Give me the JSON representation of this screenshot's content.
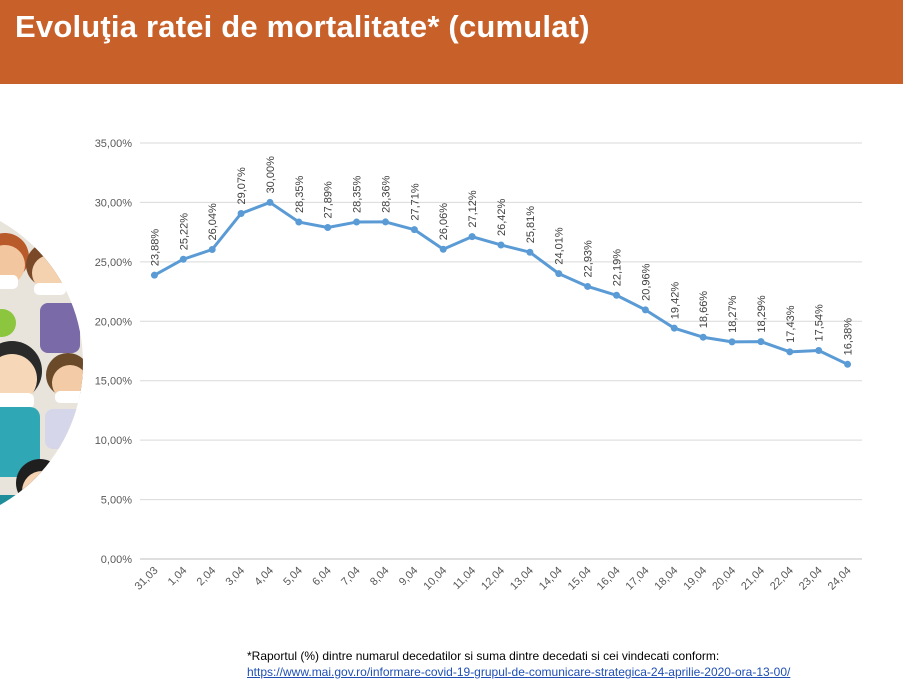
{
  "header": {
    "title": "Evoluţia ratei de mortalitate* (cumulat)"
  },
  "colors": {
    "header_bg": "#c8602a",
    "series": "#5b9bd5",
    "grid": "#d9d9d9"
  },
  "chart_data": {
    "type": "line",
    "title": "",
    "xlabel": "",
    "ylabel": "",
    "ylim": [
      0,
      35
    ],
    "y_ticks": [
      "0,00%",
      "5,00%",
      "10,00%",
      "15,00%",
      "20,00%",
      "25,00%",
      "30,00%",
      "35,00%"
    ],
    "grid": true,
    "legend": "none",
    "categories": [
      "31,03",
      "1,04",
      "2,04",
      "3,04",
      "4,04",
      "5,04",
      "6,04",
      "7,04",
      "8,04",
      "9,04",
      "10,04",
      "11,04",
      "12,04",
      "13,04",
      "14,04",
      "15,04",
      "16,04",
      "17,04",
      "18,04",
      "19,04",
      "20,04",
      "21,04",
      "22,04",
      "23,04",
      "24,04"
    ],
    "series": [
      {
        "values": [
          23.88,
          25.22,
          26.04,
          29.07,
          30.0,
          28.35,
          27.89,
          28.35,
          28.36,
          27.71,
          26.06,
          27.12,
          26.42,
          25.81,
          24.01,
          22.93,
          22.19,
          20.96,
          19.42,
          18.66,
          18.27,
          18.29,
          17.43,
          17.54,
          16.38
        ],
        "labels": [
          "23,88%",
          "25,22%",
          "26,04%",
          "29,07%",
          "30,00%",
          "28,35%",
          "27,89%",
          "28,35%",
          "28,36%",
          "27,71%",
          "26,06%",
          "27,12%",
          "26,42%",
          "25,81%",
          "24,01%",
          "22,93%",
          "22,19%",
          "20,96%",
          "19,42%",
          "18,66%",
          "18,27%",
          "18,29%",
          "17,43%",
          "17,54%",
          "16,38%"
        ]
      }
    ]
  },
  "footnote": {
    "text": "*Raportul  (%) dintre  numarul decedatilor si suma dintre  decedati si cei  vindecati conform:",
    "link": "https://www.mai.gov.ro/informare-covid-19-grupul-de-comunicare-strategica-24-aprilie-2020-ora-13-00/"
  }
}
